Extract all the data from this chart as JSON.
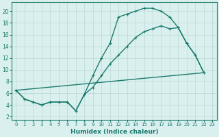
{
  "line1_x": [
    0,
    1,
    2,
    3,
    4,
    5,
    6,
    7,
    8,
    9,
    10,
    11,
    12,
    13,
    14,
    15,
    16,
    17,
    18,
    19,
    20,
    21,
    22
  ],
  "line1_y": [
    6.5,
    5.0,
    4.5,
    4.0,
    4.5,
    4.5,
    4.5,
    3.0,
    5.8,
    9.0,
    12.0,
    14.5,
    19.0,
    19.5,
    20.0,
    20.5,
    20.5,
    20.0,
    19.0,
    17.2,
    14.5,
    12.5,
    9.5
  ],
  "line2_x": [
    0,
    22
  ],
  "line2_y": [
    6.5,
    9.5
  ],
  "line3_x": [
    0,
    1,
    2,
    3,
    4,
    5,
    6,
    7,
    8,
    9,
    10,
    11,
    12,
    13,
    14,
    15,
    16,
    17,
    18,
    19,
    20,
    21,
    22
  ],
  "line3_y": [
    6.5,
    5.0,
    4.5,
    4.0,
    4.5,
    4.5,
    4.5,
    3.0,
    5.8,
    7.0,
    9.0,
    11.0,
    12.5,
    14.0,
    15.5,
    16.5,
    17.0,
    17.5,
    17.0,
    17.2,
    14.5,
    12.5,
    9.5
  ],
  "color": "#1a7a6e",
  "bg_color": "#daf0ee",
  "grid_color": "#b8d8d4",
  "xlabel": "Humidex (Indice chaleur)",
  "xlim": [
    -0.5,
    23.5
  ],
  "ylim": [
    1.5,
    21.5
  ],
  "xticks": [
    0,
    1,
    2,
    3,
    4,
    5,
    6,
    7,
    8,
    9,
    10,
    11,
    12,
    13,
    14,
    15,
    16,
    17,
    18,
    19,
    20,
    21,
    22,
    23
  ],
  "yticks": [
    2,
    4,
    6,
    8,
    10,
    12,
    14,
    16,
    18,
    20
  ],
  "marker": "+"
}
